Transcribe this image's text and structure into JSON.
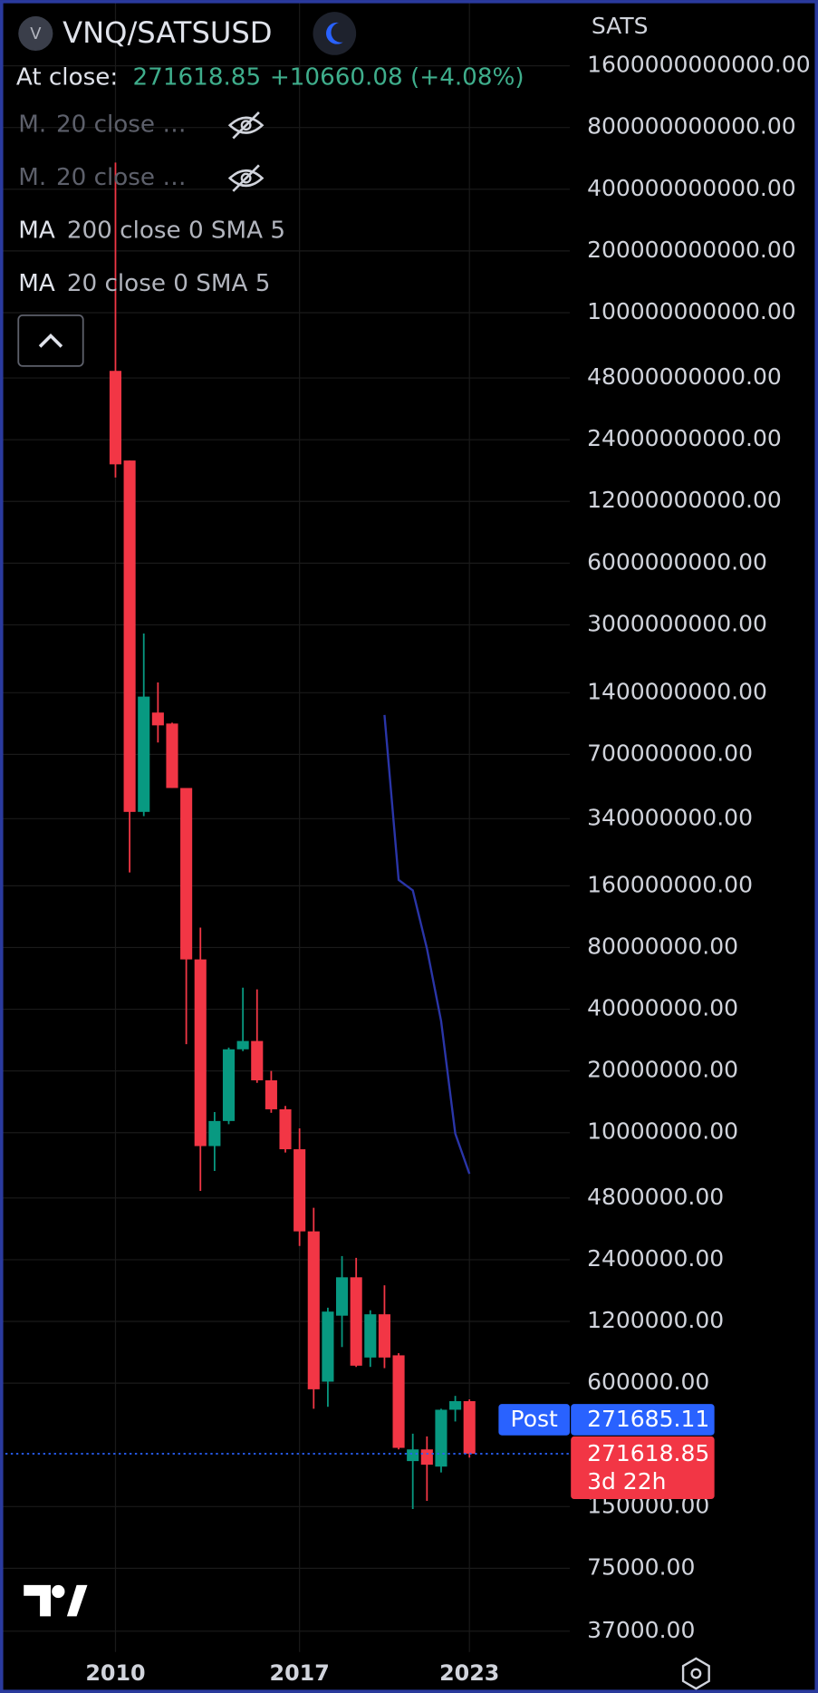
{
  "chart_data": {
    "type": "candlestick",
    "header": {
      "logo_letter": "V",
      "symbol": "VNQ/SATSUSD",
      "at_close_label": "At close:",
      "change": "+10660.08 (+4.08%)",
      "indicators": [
        {
          "name": "M.",
          "args": "20 close …",
          "hidden": true
        },
        {
          "name": "M.",
          "args": "20 close …",
          "hidden": true
        },
        {
          "name": "MA",
          "args": "200 close 0 SMA 5",
          "hidden": false
        },
        {
          "name": "MA",
          "args": "20 close 0 SMA 5",
          "hidden": false
        }
      ]
    },
    "unit": "SATS",
    "post_label": "Post",
    "post_price": 271685.11,
    "countdown": "3d 22h",
    "categories": [
      "2010",
      null,
      null,
      null,
      null,
      null,
      null,
      null,
      null,
      null,
      null,
      null,
      null,
      "2017",
      null,
      null,
      null,
      null,
      null,
      null,
      null,
      null,
      null,
      null,
      null,
      "2023"
    ],
    "open": [
      52000000000.0,
      19000000000.0,
      367000000.0,
      1120000000.0,
      990000000.0,
      480000000.0,
      70000000.0,
      8600000.0,
      11400000.0,
      25500000.0,
      28000000.0,
      18000000.0,
      13000000.0,
      8300000.0,
      3300000.0,
      610000.0,
      1280000.0,
      1970000.0,
      800000.0,
      1300000.0,
      820000.0,
      250000.0,
      285000.0,
      235000.0,
      445000.0,
      490000.0
    ],
    "high": [
      540000000000.0,
      19000000000.0,
      2720000000.0,
      1570000000.0,
      1000000000.0,
      480000000.0,
      100000000.0,
      12600000.0,
      26000000.0,
      51000000.0,
      50000000.0,
      20000000.0,
      13500000.0,
      10500000.0,
      4300000.0,
      1400000.0,
      2500000.0,
      2450000.0,
      1360000.0,
      1800000.0,
      840000.0,
      340000.0,
      330000.0,
      450000.0,
      520000.0,
      500000.0
    ],
    "low": [
      15700000000.0,
      186000000.0,
      350000000.0,
      800000000.0,
      480000000.0,
      27000000.0,
      5200000.0,
      6500000.0,
      11000000.0,
      25000000.0,
      17500000.0,
      12500000.0,
      8000000.0,
      2800000.0,
      450000.0,
      460000.0,
      900000.0,
      720000.0,
      720000.0,
      710000.0,
      285000.0,
      146000.0,
      160000.0,
      220000.0,
      390000.0,
      260000.0
    ],
    "close": [
      18200000000.0,
      367000000.0,
      1340000000.0,
      970000000.0,
      480000000.0,
      70000000.0,
      8600000.0,
      11400000.0,
      25500000.0,
      28000000.0,
      18000000.0,
      13000000.0,
      8300000.0,
      3300000.0,
      560000.0,
      1340000.0,
      1970000.0,
      730000.0,
      1300000.0,
      800000.0,
      290000.0,
      285000.0,
      240000.0,
      445000.0,
      490000.0,
      271618.85
    ],
    "up_color": "#089981",
    "down_color": "#f23645",
    "ma_line": {
      "color": "#2a35a8",
      "values": [
        null,
        null,
        null,
        null,
        null,
        null,
        null,
        null,
        null,
        null,
        null,
        null,
        null,
        null,
        null,
        null,
        null,
        null,
        null,
        1090000000.0,
        171000000.0,
        152000000.0,
        79000000.0,
        35000000.0,
        9900000.0,
        6300000.0
      ]
    },
    "log_scale": true,
    "grid": true,
    "ylim": [
      29300,
      3350000000000
    ],
    "yticks": [
      {
        "value": 1600000000000,
        "label": "1600000000000.00"
      },
      {
        "value": 800000000000,
        "label": "800000000000.00"
      },
      {
        "value": 400000000000,
        "label": "400000000000.00"
      },
      {
        "value": 200000000000,
        "label": "200000000000.00"
      },
      {
        "value": 100000000000,
        "label": "100000000000.00"
      },
      {
        "value": 48000000000,
        "label": "48000000000.00"
      },
      {
        "value": 24000000000,
        "label": "24000000000.00"
      },
      {
        "value": 12000000000,
        "label": "12000000000.00"
      },
      {
        "value": 6000000000,
        "label": "6000000000.00"
      },
      {
        "value": 3000000000,
        "label": "3000000000.00"
      },
      {
        "value": 1400000000,
        "label": "1400000000.00"
      },
      {
        "value": 700000000,
        "label": "700000000.00"
      },
      {
        "value": 340000000,
        "label": "340000000.00"
      },
      {
        "value": 160000000,
        "label": "160000000.00"
      },
      {
        "value": 80000000,
        "label": "80000000.00"
      },
      {
        "value": 40000000,
        "label": "40000000.00"
      },
      {
        "value": 20000000,
        "label": "20000000.00"
      },
      {
        "value": 10000000,
        "label": "10000000.00"
      },
      {
        "value": 4800000,
        "label": "4800000.00"
      },
      {
        "value": 2400000,
        "label": "2400000.00"
      },
      {
        "value": 1200000,
        "label": "1200000.00"
      },
      {
        "value": 600000,
        "label": "600000.00"
      },
      {
        "value": 150000,
        "label": "150000.00"
      },
      {
        "value": 75000,
        "label": "75000.00"
      },
      {
        "value": 37000,
        "label": "37000.00"
      }
    ]
  }
}
